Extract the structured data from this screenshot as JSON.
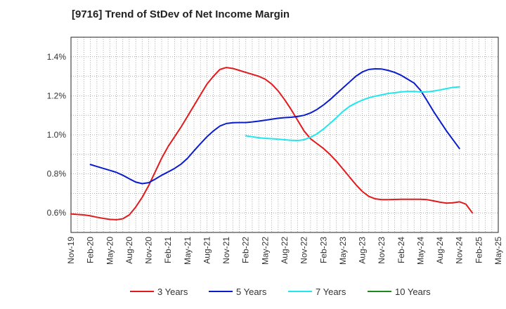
{
  "chart_data": {
    "type": "line",
    "title": "[9716]  Trend of StDev of Net Income Margin",
    "xlabel": "",
    "ylabel": "",
    "x_ticks": [
      "Nov-19",
      "Feb-20",
      "May-20",
      "Aug-20",
      "Nov-20",
      "Feb-21",
      "May-21",
      "Aug-21",
      "Nov-21",
      "Feb-22",
      "May-22",
      "Aug-22",
      "Nov-22",
      "Feb-23",
      "May-23",
      "Aug-23",
      "Nov-23",
      "Feb-24",
      "May-24",
      "Aug-24",
      "Nov-24",
      "Feb-25",
      "May-25"
    ],
    "y_ticks": [
      "0.6%",
      "0.8%",
      "1.0%",
      "1.2%",
      "1.4%"
    ],
    "y_tick_values": [
      0.6,
      0.8,
      1.0,
      1.2,
      1.4
    ],
    "ylim": [
      0.5,
      1.5
    ],
    "grid": true,
    "legend_position": "bottom",
    "series": [
      {
        "name": "3 Years",
        "color": "#e31a1c",
        "points": [
          [
            "Nov-19",
            0.595
          ],
          [
            "Dec-19",
            0.592
          ],
          [
            "Jan-20",
            0.59
          ],
          [
            "Feb-20",
            0.585
          ],
          [
            "Mar-20",
            0.578
          ],
          [
            "Apr-20",
            0.572
          ],
          [
            "May-20",
            0.567
          ],
          [
            "Jun-20",
            0.565
          ],
          [
            "Jul-20",
            0.57
          ],
          [
            "Aug-20",
            0.59
          ],
          [
            "Sep-20",
            0.63
          ],
          [
            "Oct-20",
            0.68
          ],
          [
            "Nov-20",
            0.74
          ],
          [
            "Dec-20",
            0.81
          ],
          [
            "Jan-21",
            0.88
          ],
          [
            "Feb-21",
            0.94
          ],
          [
            "Mar-21",
            0.99
          ],
          [
            "Apr-21",
            1.04
          ],
          [
            "May-21",
            1.095
          ],
          [
            "Jun-21",
            1.15
          ],
          [
            "Jul-21",
            1.205
          ],
          [
            "Aug-21",
            1.26
          ],
          [
            "Sep-21",
            1.3
          ],
          [
            "Oct-21",
            1.335
          ],
          [
            "Nov-21",
            1.345
          ],
          [
            "Dec-21",
            1.34
          ],
          [
            "Jan-22",
            1.33
          ],
          [
            "Feb-22",
            1.32
          ],
          [
            "Mar-22",
            1.31
          ],
          [
            "Apr-22",
            1.3
          ],
          [
            "May-22",
            1.285
          ],
          [
            "Jun-22",
            1.26
          ],
          [
            "Jul-22",
            1.225
          ],
          [
            "Aug-22",
            1.18
          ],
          [
            "Sep-22",
            1.13
          ],
          [
            "Oct-22",
            1.075
          ],
          [
            "Nov-22",
            1.02
          ],
          [
            "Dec-22",
            0.98
          ],
          [
            "Jan-23",
            0.955
          ],
          [
            "Feb-23",
            0.93
          ],
          [
            "Mar-23",
            0.9
          ],
          [
            "Apr-23",
            0.865
          ],
          [
            "May-23",
            0.825
          ],
          [
            "Jun-23",
            0.785
          ],
          [
            "Jul-23",
            0.745
          ],
          [
            "Aug-23",
            0.71
          ],
          [
            "Sep-23",
            0.685
          ],
          [
            "Oct-23",
            0.672
          ],
          [
            "Nov-23",
            0.668
          ],
          [
            "Dec-23",
            0.668
          ],
          [
            "Jan-24",
            0.669
          ],
          [
            "Feb-24",
            0.67
          ],
          [
            "Mar-24",
            0.67
          ],
          [
            "Apr-24",
            0.67
          ],
          [
            "May-24",
            0.67
          ],
          [
            "Jun-24",
            0.668
          ],
          [
            "Jul-24",
            0.662
          ],
          [
            "Aug-24",
            0.655
          ],
          [
            "Sep-24",
            0.65
          ],
          [
            "Oct-24",
            0.652
          ],
          [
            "Nov-24",
            0.657
          ],
          [
            "Dec-24",
            0.645
          ],
          [
            "Jan-25",
            0.6
          ]
        ]
      },
      {
        "name": "5 Years",
        "color": "#0a1ccc",
        "points": [
          [
            "Feb-20",
            0.848
          ],
          [
            "Mar-20",
            0.838
          ],
          [
            "Apr-20",
            0.828
          ],
          [
            "May-20",
            0.818
          ],
          [
            "Jun-20",
            0.808
          ],
          [
            "Jul-20",
            0.793
          ],
          [
            "Aug-20",
            0.775
          ],
          [
            "Sep-20",
            0.758
          ],
          [
            "Oct-20",
            0.75
          ],
          [
            "Nov-20",
            0.755
          ],
          [
            "Dec-20",
            0.773
          ],
          [
            "Jan-21",
            0.793
          ],
          [
            "Feb-21",
            0.81
          ],
          [
            "Mar-21",
            0.828
          ],
          [
            "Apr-21",
            0.85
          ],
          [
            "May-21",
            0.88
          ],
          [
            "Jun-21",
            0.918
          ],
          [
            "Jul-21",
            0.955
          ],
          [
            "Aug-21",
            0.99
          ],
          [
            "Sep-21",
            1.02
          ],
          [
            "Oct-21",
            1.045
          ],
          [
            "Nov-21",
            1.058
          ],
          [
            "Dec-21",
            1.062
          ],
          [
            "Jan-22",
            1.063
          ],
          [
            "Feb-22",
            1.063
          ],
          [
            "Mar-22",
            1.066
          ],
          [
            "Apr-22",
            1.07
          ],
          [
            "May-22",
            1.075
          ],
          [
            "Jun-22",
            1.08
          ],
          [
            "Jul-22",
            1.085
          ],
          [
            "Aug-22",
            1.088
          ],
          [
            "Sep-22",
            1.09
          ],
          [
            "Oct-22",
            1.094
          ],
          [
            "Nov-22",
            1.1
          ],
          [
            "Dec-22",
            1.112
          ],
          [
            "Jan-23",
            1.13
          ],
          [
            "Feb-23",
            1.153
          ],
          [
            "Mar-23",
            1.18
          ],
          [
            "Apr-23",
            1.21
          ],
          [
            "May-23",
            1.24
          ],
          [
            "Jun-23",
            1.27
          ],
          [
            "Jul-23",
            1.3
          ],
          [
            "Aug-23",
            1.322
          ],
          [
            "Sep-23",
            1.335
          ],
          [
            "Oct-23",
            1.338
          ],
          [
            "Nov-23",
            1.337
          ],
          [
            "Dec-23",
            1.33
          ],
          [
            "Jan-24",
            1.32
          ],
          [
            "Feb-24",
            1.305
          ],
          [
            "Mar-24",
            1.285
          ],
          [
            "Apr-24",
            1.265
          ],
          [
            "May-24",
            1.228
          ],
          [
            "Jun-24",
            1.175
          ],
          [
            "Jul-24",
            1.12
          ],
          [
            "Aug-24",
            1.07
          ],
          [
            "Sep-24",
            1.02
          ],
          [
            "Oct-24",
            0.975
          ],
          [
            "Nov-24",
            0.93
          ]
        ]
      },
      {
        "name": "7 Years",
        "color": "#1ee7ee",
        "points": [
          [
            "Feb-22",
            0.995
          ],
          [
            "Mar-22",
            0.99
          ],
          [
            "Apr-22",
            0.985
          ],
          [
            "May-22",
            0.982
          ],
          [
            "Jun-22",
            0.98
          ],
          [
            "Jul-22",
            0.978
          ],
          [
            "Aug-22",
            0.975
          ],
          [
            "Sep-22",
            0.972
          ],
          [
            "Oct-22",
            0.971
          ],
          [
            "Nov-22",
            0.975
          ],
          [
            "Dec-22",
            0.988
          ],
          [
            "Jan-23",
            1.005
          ],
          [
            "Feb-23",
            1.03
          ],
          [
            "Mar-23",
            1.058
          ],
          [
            "Apr-23",
            1.088
          ],
          [
            "May-23",
            1.12
          ],
          [
            "Jun-23",
            1.145
          ],
          [
            "Jul-23",
            1.163
          ],
          [
            "Aug-23",
            1.178
          ],
          [
            "Sep-23",
            1.19
          ],
          [
            "Oct-23",
            1.198
          ],
          [
            "Nov-23",
            1.205
          ],
          [
            "Dec-23",
            1.212
          ],
          [
            "Jan-24",
            1.216
          ],
          [
            "Feb-24",
            1.22
          ],
          [
            "Mar-24",
            1.222
          ],
          [
            "Apr-24",
            1.222
          ],
          [
            "May-24",
            1.22
          ],
          [
            "Jun-24",
            1.22
          ],
          [
            "Jul-24",
            1.224
          ],
          [
            "Aug-24",
            1.23
          ],
          [
            "Sep-24",
            1.237
          ],
          [
            "Oct-24",
            1.243
          ],
          [
            "Nov-24",
            1.246
          ]
        ]
      },
      {
        "name": "10 Years",
        "color": "#1a8a1a",
        "points": []
      }
    ]
  }
}
